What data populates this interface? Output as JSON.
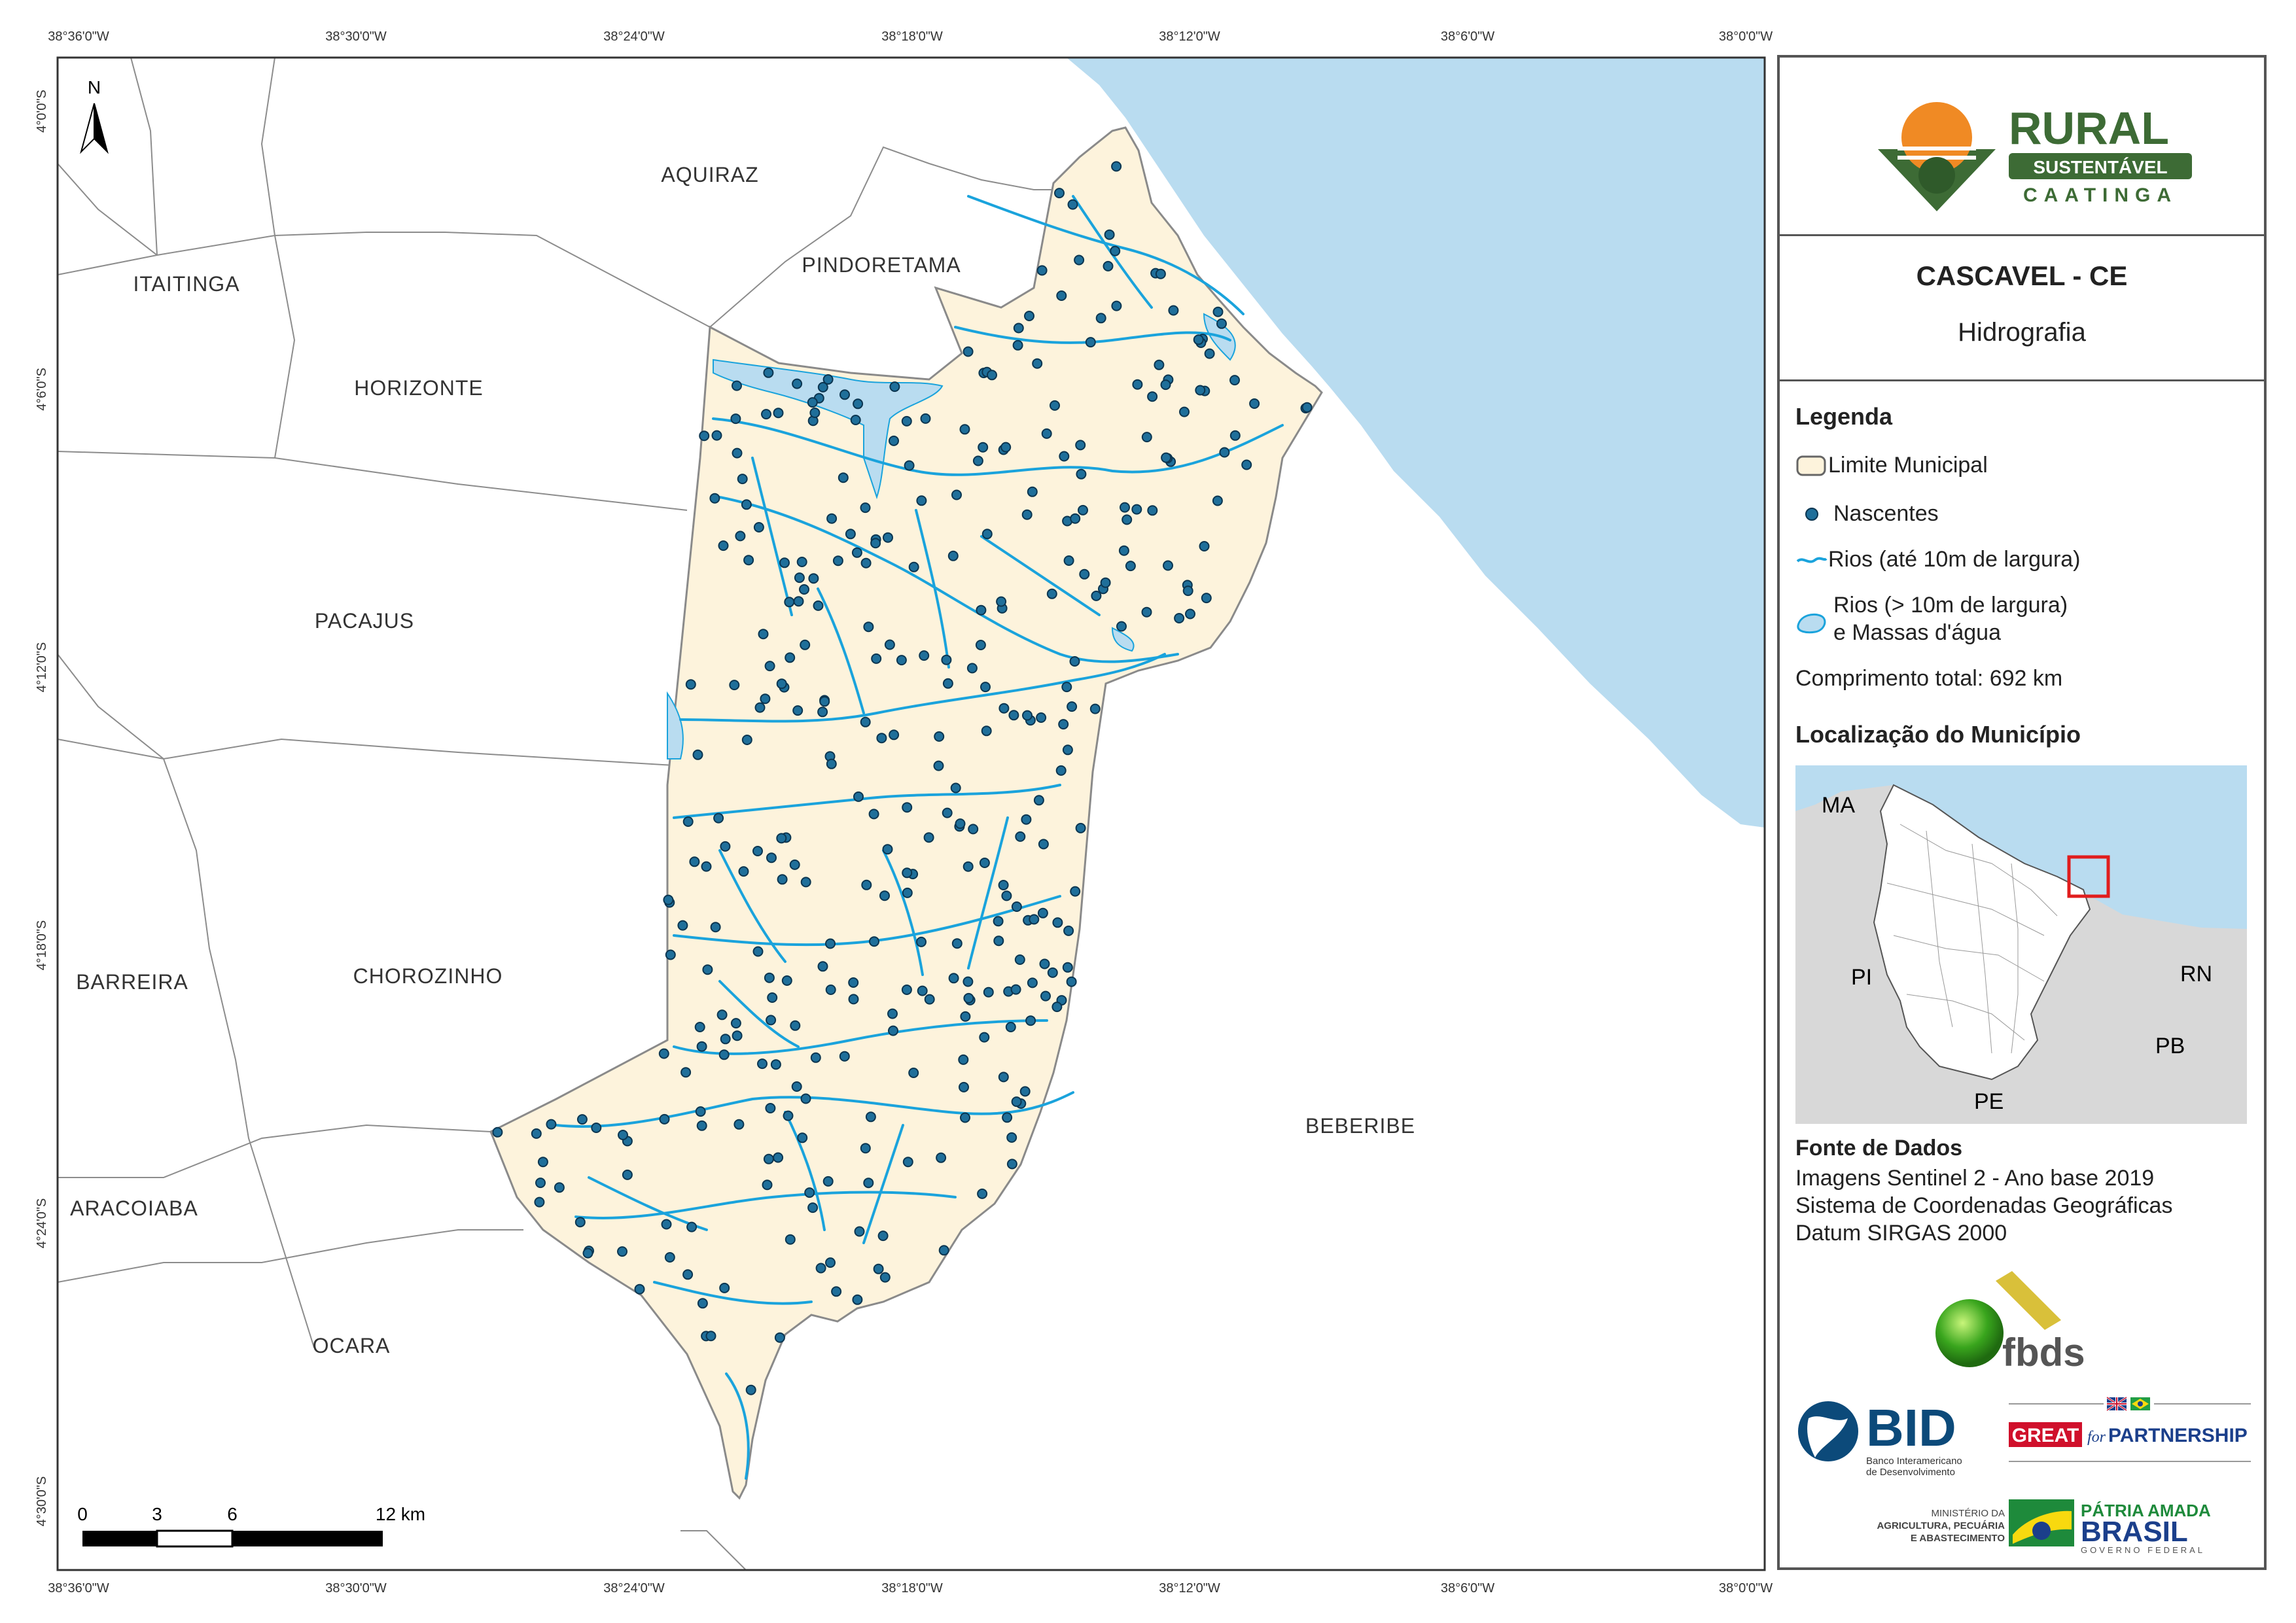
{
  "map": {
    "coords_top": [
      "38°36'0\"W",
      "38°30'0\"W",
      "38°24'0\"W",
      "38°18'0\"W",
      "38°12'0\"W",
      "38°6'0\"W",
      "38°0'0\"W"
    ],
    "coords_bottom": [
      "38°36'0\"W",
      "38°30'0\"W",
      "38°24'0\"W",
      "38°18'0\"W",
      "38°12'0\"W",
      "38°6'0\"W",
      "38°0'0\"W"
    ],
    "coords_left": [
      "4°0'0\"S",
      "4°6'0\"S",
      "4°12'0\"S",
      "4°18'0\"S",
      "4°24'0\"S",
      "4°30'0\"S"
    ],
    "north_label": "N",
    "municipalities": {
      "aquiraz": "AQUIRAZ",
      "itaitinga": "ITAITINGA",
      "pindoretama": "PINDORETAMA",
      "horizonte": "HORIZONTE",
      "pacajus": "PACAJUS",
      "barreira": "BARREIRA",
      "chorozinho": "CHOROZINHO",
      "beberibe": "BEBERIBE",
      "aracoiaba": "ARACOIABA",
      "ocara": "OCARA"
    },
    "scale": {
      "labels": [
        "0",
        "3",
        "6",
        "12 km"
      ]
    }
  },
  "panel": {
    "logo": {
      "line1": "RURAL",
      "line2": "SUSTENTÁVEL",
      "line3": "CAATINGA"
    },
    "title": "CASCAVEL - CE",
    "subtitle": "Hidrografia",
    "legend_heading": "Legenda",
    "legend": {
      "limit": "Limite Municipal",
      "springs": "Nascentes",
      "rivers_small": "Rios (até 10m de largura)",
      "rivers_large_1": "Rios (> 10m de largura)",
      "rivers_large_2": "e Massas d'água"
    },
    "total_label": "Comprimento total:",
    "total_value": "692 km",
    "location_heading": "Localização do Município",
    "inset_labels": {
      "ma": "MA",
      "pi": "PI",
      "rn": "RN",
      "pb": "PB",
      "pe": "PE"
    },
    "source_heading": "Fonte de Dados",
    "source_lines": [
      "Imagens Sentinel 2 - Ano base 2019",
      "Sistema de Coordenadas Geográficas",
      "Datum SIRGAS 2000"
    ],
    "partners": {
      "fbds": "fbds",
      "bid": "BID",
      "bid_sub1": "Banco Interamericano",
      "bid_sub2": "de Desenvolvimento",
      "great_1": "GREAT",
      "great_2": "for",
      "great_3": "PARTNERSHIP",
      "mapa_1": "MINISTÉRIO DA",
      "mapa_2": "AGRICULTURA, PECUÁRIA",
      "mapa_3": "E ABASTECIMENTO",
      "brasil_1": "PÁTRIA AMADA",
      "brasil_2": "BRASIL",
      "brasil_3": "GOVERNO FEDERAL"
    }
  },
  "colors": {
    "sea": "#b9dcf0",
    "municipality_fill": "#fdf3dc",
    "river": "#1aa3dc",
    "spring": "#1f6f9a",
    "boundary": "#888888",
    "logo_green": "#3d6b35",
    "highlight_box": "#e11d1d"
  }
}
